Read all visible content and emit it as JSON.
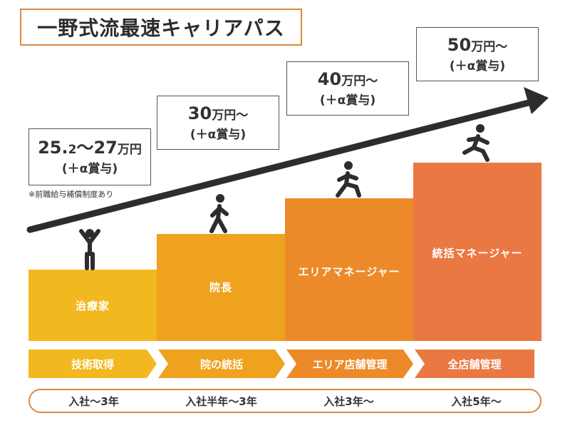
{
  "title": "一野式流最速キャリアパス",
  "salaries": [
    {
      "amount_main": "25.",
      "amount_small": "2",
      "amount_rest": "〜27",
      "unit": "万円",
      "bonus": "(＋α賞与)"
    },
    {
      "amount_main": "30",
      "amount_small": "",
      "amount_rest": "",
      "unit": "万円〜",
      "bonus": "(＋α賞与)"
    },
    {
      "amount_main": "40",
      "amount_small": "",
      "amount_rest": "",
      "unit": "万円〜",
      "bonus": "(＋α賞与)"
    },
    {
      "amount_main": "50",
      "amount_small": "",
      "amount_rest": "",
      "unit": "万円〜",
      "bonus": "(＋α賞与)"
    }
  ],
  "note": "※前職給与補償制度あり",
  "steps": [
    {
      "label": "治療家",
      "color": "#f2b81f"
    },
    {
      "label": "院長",
      "color": "#efa21e"
    },
    {
      "label": "エリアマネージャー",
      "color": "#ec8a2a"
    },
    {
      "label": "統括マネージャー",
      "color": "#ea7843"
    }
  ],
  "stages": [
    {
      "label": "技術取得",
      "color": "#f2b81f"
    },
    {
      "label": "院の統括",
      "color": "#efa21e"
    },
    {
      "label": "エリア店舗管理",
      "color": "#ec8a2a"
    },
    {
      "label": "全店舗管理",
      "color": "#ea7843"
    }
  ],
  "timeline": [
    "入社〜3年",
    "入社半年〜3年",
    "入社3年〜",
    "入社5年〜"
  ],
  "icons": [
    "person-standing-icon",
    "person-walking-icon",
    "person-walking-fast-icon",
    "person-running-icon"
  ],
  "colors": {
    "arrow": "#2d2d2d",
    "figure": "#2d2d2d",
    "border": "#e0873b"
  }
}
